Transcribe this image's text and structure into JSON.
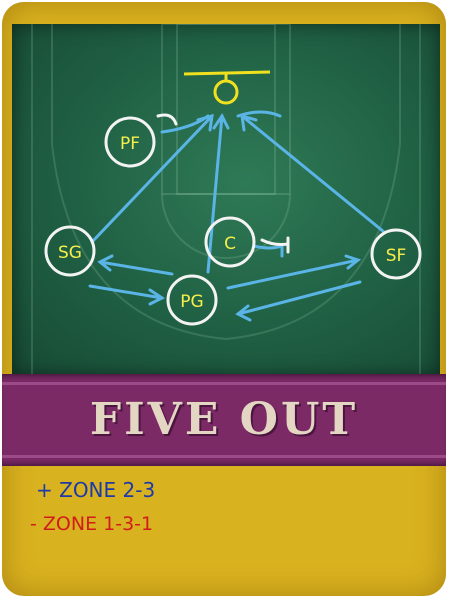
{
  "card": {
    "title": "FIVE OUT",
    "strength_label": "+ ZONE 2-3",
    "weakness_label": "- ZONE 1-3-1"
  },
  "players": [
    {
      "label": "PF"
    },
    {
      "label": "SG"
    },
    {
      "label": "C"
    },
    {
      "label": "SF"
    },
    {
      "label": "PG"
    }
  ],
  "colors": {
    "card": "#d9b21f",
    "board": "#1f5f43",
    "banner": "#7b2a66",
    "title": "#e3d7c3",
    "strength": "#1d3aa8",
    "weakness": "#d11c1c",
    "chalk_arrow": "#5ab4e6",
    "basket": "#f0e020"
  }
}
